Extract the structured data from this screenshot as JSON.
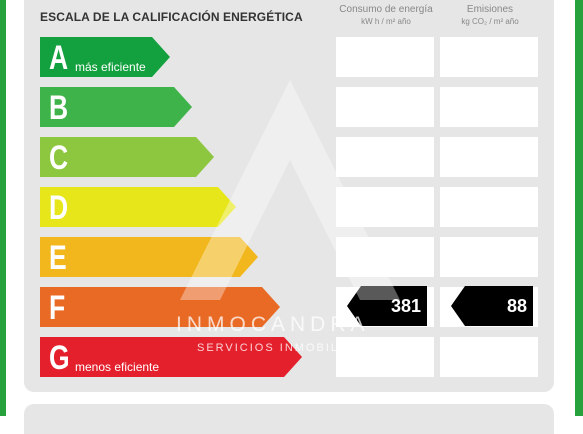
{
  "header": {
    "title": "ESCALA DE LA CALIFICACIÓN ENERGÉTICA",
    "consumo_label": "Consumo de energía",
    "consumo_unit": "kW h / m² año",
    "emisiones_label": "Emisiones",
    "emisiones_unit": "kg CO₂ / m² año"
  },
  "ratings": [
    {
      "letter": "A",
      "desc": "más eficiente",
      "color": "#13a03e"
    },
    {
      "letter": "B",
      "desc": "",
      "color": "#3db34a"
    },
    {
      "letter": "C",
      "desc": "",
      "color": "#8dc63f"
    },
    {
      "letter": "D",
      "desc": "",
      "color": "#e6e61a"
    },
    {
      "letter": "E",
      "desc": "",
      "color": "#f2b71d"
    },
    {
      "letter": "F",
      "desc": "",
      "color": "#e96a25"
    },
    {
      "letter": "G",
      "desc": "menos eficiente",
      "color": "#e4202c"
    }
  ],
  "result": {
    "rating": "F",
    "consumo": "381",
    "emisiones": "88"
  },
  "watermark": {
    "name": "INMOCANDRA",
    "tagline": "SERVICIOS INMOBILIARIOS"
  }
}
